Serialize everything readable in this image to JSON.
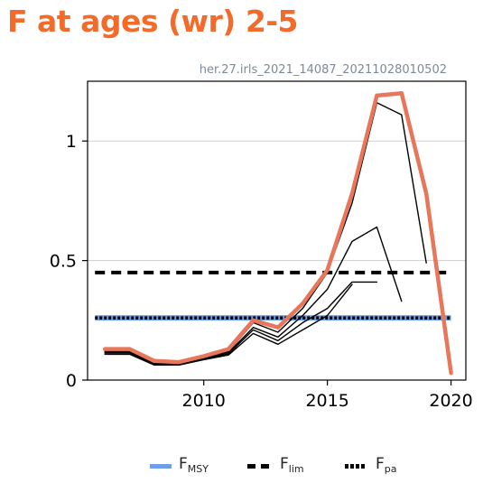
{
  "header": {
    "title": "F at ages (wr) 2-5",
    "subtitle": "her.27.irls_2021_14087_20211028010502"
  },
  "colors": {
    "title": "#f26b2a",
    "assessment": "#e8765a",
    "retro": "#000000",
    "fmsy": "#6ea0e8",
    "flim": "#000000",
    "fpa": "#000000"
  },
  "legend": {
    "fmsy": {
      "main": "F",
      "sub": "MSY"
    },
    "flim": {
      "main": "F",
      "sub": "lim"
    },
    "fpa": {
      "main": "F",
      "sub": "pa"
    }
  },
  "chart_data": {
    "type": "line",
    "title": "F at ages (wr) 2-5",
    "xlim": [
      2005.3,
      2020.6
    ],
    "ylim": [
      0,
      1.25
    ],
    "xticks": [
      2010,
      2015,
      2020
    ],
    "yticks": [
      0,
      0.5,
      1
    ],
    "ytick_labels": [
      "0",
      "0.5",
      "1"
    ],
    "grid": "horizontal",
    "reference_lines": [
      {
        "name": "FMSY",
        "y": 0.26,
        "style": "solid"
      },
      {
        "name": "Flim",
        "y": 0.45,
        "style": "dashed"
      },
      {
        "name": "Fpa",
        "y": 0.26,
        "style": "dotted"
      }
    ],
    "series": [
      {
        "role": "assessment",
        "x": [
          2006,
          2007,
          2008,
          2009,
          2010,
          2011,
          2012,
          2013,
          2014,
          2015,
          2016,
          2017,
          2018,
          2019,
          2020
        ],
        "y": [
          0.13,
          0.13,
          0.08,
          0.075,
          0.1,
          0.13,
          0.25,
          0.22,
          0.32,
          0.46,
          0.78,
          1.19,
          1.2,
          0.78,
          0.03
        ]
      },
      {
        "role": "retro",
        "x": [
          2006,
          2007,
          2008,
          2009,
          2010,
          2011,
          2012,
          2013,
          2014,
          2015,
          2016,
          2017,
          2018,
          2019
        ],
        "y": [
          0.12,
          0.12,
          0.07,
          0.07,
          0.095,
          0.12,
          0.24,
          0.2,
          0.3,
          0.45,
          0.74,
          1.16,
          1.11,
          0.49
        ]
      },
      {
        "role": "retro",
        "x": [
          2006,
          2007,
          2008,
          2009,
          2010,
          2011,
          2012,
          2013,
          2014,
          2015,
          2016,
          2017,
          2018
        ],
        "y": [
          0.115,
          0.115,
          0.068,
          0.068,
          0.09,
          0.115,
          0.22,
          0.18,
          0.27,
          0.38,
          0.58,
          0.64,
          0.33
        ]
      },
      {
        "role": "retro",
        "x": [
          2006,
          2007,
          2008,
          2009,
          2010,
          2011,
          2012,
          2013,
          2014,
          2015,
          2016,
          2017
        ],
        "y": [
          0.11,
          0.11,
          0.065,
          0.065,
          0.088,
          0.11,
          0.21,
          0.165,
          0.24,
          0.3,
          0.41,
          0.41
        ]
      },
      {
        "role": "retro",
        "x": [
          2006,
          2007,
          2008,
          2009,
          2010,
          2011,
          2012,
          2013,
          2014,
          2015,
          2016
        ],
        "y": [
          0.108,
          0.108,
          0.063,
          0.063,
          0.085,
          0.105,
          0.195,
          0.15,
          0.21,
          0.27,
          0.4
        ]
      }
    ]
  }
}
